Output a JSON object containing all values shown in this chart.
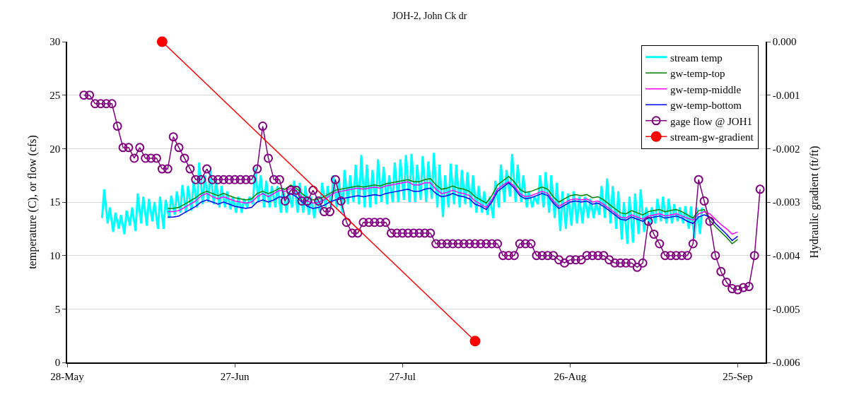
{
  "chart_data": {
    "type": "line",
    "title": "JOH-2, John Ck dr",
    "ylabel": "temperature (C), or flow (cfs)",
    "y2label": "Hydraulic gradient (ft/ft)",
    "xlim": [
      "--05-28",
      "--09-30"
    ],
    "xticks": [
      {
        "value": "--05-28",
        "label": "28-May"
      },
      {
        "value": "--06-27",
        "label": "27-Jun"
      },
      {
        "value": "--07-27",
        "label": "27-Jul"
      },
      {
        "value": "--08-26",
        "label": "26-Aug"
      },
      {
        "value": "--09-25",
        "label": "25-Sep"
      }
    ],
    "ylim": [
      0,
      30
    ],
    "yticks": [
      0,
      5,
      10,
      15,
      20,
      25,
      30
    ],
    "y2lim": [
      -0.006,
      0
    ],
    "y2ticks": [
      {
        "value": -0.006,
        "label": "-0.006"
      },
      {
        "value": -0.005,
        "label": "-0.005"
      },
      {
        "value": -0.004,
        "label": "-0.004"
      },
      {
        "value": -0.003,
        "label": "-0.003"
      },
      {
        "value": -0.002,
        "label": "-0.002"
      },
      {
        "value": -0.001,
        "label": "-0.001"
      },
      {
        "value": 0,
        "label": "0.000"
      }
    ],
    "grid": "y",
    "legend": "top right",
    "x": [
      "--06-15",
      "--06-16",
      "--06-17",
      "--06-18",
      "--06-19",
      "--06-20",
      "--06-21",
      "--06-22",
      "--06-23",
      "--06-24",
      "--06-25",
      "--06-26",
      "--06-27",
      "--06-28",
      "--06-29",
      "--06-30",
      "--07-01",
      "--07-02",
      "--07-03",
      "--07-04",
      "--07-05",
      "--07-06",
      "--07-07",
      "--07-08",
      "--07-09",
      "--07-10",
      "--07-11",
      "--07-12",
      "--07-13",
      "--07-14",
      "--07-15",
      "--07-16",
      "--07-17",
      "--07-18",
      "--07-19",
      "--07-20",
      "--07-21",
      "--07-22",
      "--07-23",
      "--07-24",
      "--07-25",
      "--07-26",
      "--07-27",
      "--07-28",
      "--07-29",
      "--07-30",
      "--07-31",
      "--08-01",
      "--08-02",
      "--08-03",
      "--08-04",
      "--08-05",
      "--08-06",
      "--08-07",
      "--08-08",
      "--08-09",
      "--08-10",
      "--08-11",
      "--08-12",
      "--08-13",
      "--08-14",
      "--08-15",
      "--08-16",
      "--08-17",
      "--08-18",
      "--08-19",
      "--08-20",
      "--08-21",
      "--08-22",
      "--08-23",
      "--08-24",
      "--08-25",
      "--08-26",
      "--08-27",
      "--08-28",
      "--08-29",
      "--08-30",
      "--08-31",
      "--09-01",
      "--09-02",
      "--09-03",
      "--09-04",
      "--09-05",
      "--09-06",
      "--09-07",
      "--09-08",
      "--09-09",
      "--09-10",
      "--09-11",
      "--09-12",
      "--09-13",
      "--09-14",
      "--09-15",
      "--09-16",
      "--09-17",
      "--09-18",
      "--09-19",
      "--09-20",
      "--09-21",
      "--09-22",
      "--09-23",
      "--09-24",
      "--09-25"
    ],
    "series": [
      {
        "name": "stream temp",
        "color": "#00ffff",
        "marker": "none",
        "x": [
          "--06-03T06:00",
          "--06-03T15:00",
          "--06-04T06:00",
          "--06-04T15:00",
          "--06-05T06:00",
          "--06-05T15:00",
          "--06-06T06:00",
          "--06-06T15:00",
          "--06-07T06:00",
          "--06-07T15:00",
          "--06-08T06:00",
          "--06-08T15:00",
          "--06-09T06:00",
          "--06-09T15:00",
          "--06-10T06:00",
          "--06-10T15:00",
          "--06-11T06:00",
          "--06-11T15:00",
          "--06-12T06:00",
          "--06-12T15:00",
          "--06-13T06:00",
          "--06-13T15:00",
          "--06-14T06:00",
          "--06-14T15:00",
          "--06-15T06:00",
          "--06-15T15:00",
          "--06-16T06:00",
          "--06-16T15:00",
          "--06-17T06:00",
          "--06-17T15:00",
          "--06-18T06:00",
          "--06-18T15:00",
          "--06-19T06:00",
          "--06-19T15:00",
          "--06-20T06:00",
          "--06-20T15:00",
          "--06-21T06:00",
          "--06-21T15:00",
          "--06-22T06:00",
          "--06-22T15:00",
          "--06-23T06:00",
          "--06-23T15:00",
          "--06-24T06:00",
          "--06-24T15:00",
          "--06-25T06:00",
          "--06-25T15:00",
          "--06-26T06:00",
          "--06-26T15:00",
          "--06-27T06:00",
          "--06-27T15:00",
          "--06-28T06:00",
          "--06-28T15:00",
          "--06-29T06:00",
          "--06-29T15:00",
          "--06-30T06:00",
          "--06-30T15:00",
          "--07-01T06:00",
          "--07-01T15:00",
          "--07-02T06:00",
          "--07-02T15:00",
          "--07-03T06:00",
          "--07-03T15:00",
          "--07-04T06:00",
          "--07-04T15:00",
          "--07-05T06:00",
          "--07-05T15:00",
          "--07-06T06:00",
          "--07-06T15:00",
          "--07-07T06:00",
          "--07-07T15:00",
          "--07-08T06:00",
          "--07-08T15:00",
          "--07-09T06:00",
          "--07-09T15:00",
          "--07-10T06:00",
          "--07-10T15:00",
          "--07-11T06:00",
          "--07-11T15:00",
          "--07-12T06:00",
          "--07-12T15:00",
          "--07-13T06:00",
          "--07-13T15:00",
          "--07-14T06:00",
          "--07-14T15:00",
          "--07-15T06:00",
          "--07-15T15:00",
          "--07-16T06:00",
          "--07-16T15:00",
          "--07-17T06:00",
          "--07-17T15:00",
          "--07-18T06:00",
          "--07-18T15:00",
          "--07-19T06:00",
          "--07-19T15:00",
          "--07-20T06:00",
          "--07-20T15:00",
          "--07-21T06:00",
          "--07-21T15:00",
          "--07-22T06:00",
          "--07-22T15:00",
          "--07-23T06:00",
          "--07-23T15:00",
          "--07-24T06:00",
          "--07-24T15:00",
          "--07-25T06:00",
          "--07-25T15:00",
          "--07-26T06:00",
          "--07-26T15:00",
          "--07-27T06:00",
          "--07-27T15:00",
          "--07-28T06:00",
          "--07-28T15:00",
          "--07-29T06:00",
          "--07-29T15:00",
          "--07-30T06:00",
          "--07-30T15:00",
          "--07-31T06:00",
          "--07-31T15:00",
          "--08-01T06:00",
          "--08-01T15:00",
          "--08-02T06:00",
          "--08-02T15:00",
          "--08-03T06:00",
          "--08-03T15:00",
          "--08-04T06:00",
          "--08-04T15:00",
          "--08-05T06:00",
          "--08-05T15:00",
          "--08-06T06:00",
          "--08-06T15:00",
          "--08-07T06:00",
          "--08-07T15:00",
          "--08-08T06:00",
          "--08-08T15:00",
          "--08-09T06:00",
          "--08-09T15:00",
          "--08-10T06:00",
          "--08-10T15:00",
          "--08-11T06:00",
          "--08-11T15:00",
          "--08-12T06:00",
          "--08-12T15:00",
          "--08-13T06:00",
          "--08-13T15:00",
          "--08-14T06:00",
          "--08-14T15:00",
          "--08-15T06:00",
          "--08-15T15:00",
          "--08-16T06:00",
          "--08-16T15:00",
          "--08-17T06:00",
          "--08-17T15:00",
          "--08-18T06:00",
          "--08-18T15:00",
          "--08-19T06:00",
          "--08-19T15:00",
          "--08-20T06:00",
          "--08-20T15:00",
          "--08-21T06:00",
          "--08-21T15:00",
          "--08-22T06:00",
          "--08-22T15:00",
          "--08-23T06:00",
          "--08-23T15:00",
          "--08-24T06:00",
          "--08-24T15:00",
          "--08-25T06:00",
          "--08-25T15:00",
          "--08-26T06:00",
          "--08-26T15:00",
          "--08-27T06:00",
          "--08-27T15:00",
          "--08-28T06:00",
          "--08-28T15:00",
          "--08-29T06:00",
          "--08-29T15:00",
          "--08-30T06:00",
          "--08-30T15:00",
          "--08-31T06:00",
          "--08-31T15:00",
          "--09-01T06:00",
          "--09-01T15:00",
          "--09-02T06:00",
          "--09-02T15:00",
          "--09-03T06:00",
          "--09-03T15:00",
          "--09-04T06:00",
          "--09-04T15:00",
          "--09-05T06:00",
          "--09-05T15:00",
          "--09-06T06:00",
          "--09-06T15:00",
          "--09-07T06:00",
          "--09-07T15:00",
          "--09-08T06:00",
          "--09-08T15:00",
          "--09-09T06:00",
          "--09-09T15:00",
          "--09-10T06:00",
          "--09-10T15:00",
          "--09-11T06:00",
          "--09-11T15:00",
          "--09-12T06:00",
          "--09-12T15:00",
          "--09-13T06:00",
          "--09-13T15:00",
          "--09-14T06:00",
          "--09-14T15:00",
          "--09-15T06:00",
          "--09-15T15:00",
          "--09-16T06:00",
          "--09-16T15:00",
          "--09-17T06:00",
          "--09-17T15:00",
          "--09-18T06:00",
          "--09-18T15:00"
        ],
        "values": [
          13.5,
          16.2,
          13.0,
          14.5,
          12.2,
          14.0,
          12.5,
          13.8,
          12.0,
          14.2,
          12.8,
          14.5,
          12.3,
          15.8,
          13.0,
          15.5,
          12.8,
          15.3,
          13.2,
          15.0,
          12.5,
          15.5,
          12.5,
          15.2,
          13.5,
          15.6,
          13.8,
          16.0,
          14.0,
          16.6,
          14.0,
          16.5,
          14.2,
          17.0,
          14.5,
          18.7,
          14.8,
          17.5,
          15.0,
          18.0,
          14.8,
          17.0,
          14.5,
          16.5,
          14.5,
          16.0,
          14.3,
          15.5,
          14.0,
          15.5,
          14.0,
          15.3,
          14.5,
          15.5,
          14.8,
          18.2,
          15.0,
          17.5,
          14.5,
          17.0,
          14.5,
          16.5,
          14.5,
          16.5,
          14.0,
          16.3,
          14.0,
          16.0,
          14.5,
          17.0,
          14.0,
          16.8,
          14.0,
          16.5,
          13.8,
          15.5,
          13.5,
          15.5,
          14.0,
          16.8,
          14.5,
          16.5,
          14.5,
          17.5,
          14.5,
          17.0,
          14.0,
          18.0,
          14.8,
          17.5,
          15.0,
          18.5,
          14.8,
          19.4,
          14.5,
          18.5,
          14.5,
          18.0,
          14.8,
          19.0,
          15.0,
          18.3,
          14.8,
          17.5,
          15.0,
          18.7,
          15.0,
          19.0,
          15.2,
          19.4,
          15.0,
          19.5,
          15.0,
          18.5,
          15.2,
          19.3,
          15.0,
          18.8,
          15.3,
          19.6,
          14.5,
          18.5,
          13.6,
          17.5,
          14.5,
          18.6,
          14.8,
          18.5,
          14.5,
          18.0,
          14.8,
          17.8,
          14.5,
          17.5,
          14.0,
          16.5,
          14.0,
          16.0,
          13.8,
          15.5,
          13.5,
          17.0,
          14.5,
          18.5,
          15.0,
          18.0,
          15.5,
          19.5,
          15.0,
          18.5,
          15.0,
          17.5,
          14.5,
          16.0,
          14.5,
          15.5,
          14.8,
          17.5,
          14.5,
          17.8,
          14.0,
          17.5,
          13.5,
          16.8,
          12.3,
          16.0,
          12.5,
          15.8,
          12.8,
          16.0,
          13.0,
          15.5,
          13.0,
          15.5,
          13.5,
          15.3,
          13.5,
          15.0,
          13.8,
          16.5,
          13.5,
          17.2,
          13.0,
          16.5,
          12.5,
          16.0,
          11.5,
          15.0,
          11.1,
          15.5,
          11.2,
          15.8,
          12.0,
          16.2,
          12.2,
          14.5,
          12.8,
          14.5,
          13.0,
          15.3,
          13.2,
          15.5,
          13.0,
          15.3,
          13.0,
          14.8,
          13.2,
          14.5,
          13.0,
          14.6,
          12.5,
          14.6,
          11.6,
          14.5,
          12.0,
          14.5
        ]
      },
      {
        "name": "gw-temp-top",
        "color": "#008000",
        "marker": "none",
        "values": [
          14.4,
          14.4,
          14.5,
          14.8,
          15.1,
          15.4,
          15.8,
          16.0,
          15.8,
          15.6,
          15.8,
          15.6,
          15.4,
          15.3,
          15.2,
          15.3,
          15.8,
          16.0,
          15.8,
          16.0,
          16.3,
          16.2,
          16.6,
          16.3,
          15.8,
          15.4,
          15.2,
          15.3,
          15.5,
          15.8,
          16.1,
          16.2,
          16.3,
          16.4,
          16.5,
          16.4,
          16.5,
          16.6,
          16.5,
          16.7,
          16.8,
          16.9,
          17.0,
          17.1,
          16.9,
          16.9,
          17.1,
          17.2,
          16.6,
          16.2,
          16.3,
          16.5,
          16.3,
          16.2,
          16.0,
          15.5,
          15.2,
          14.9,
          15.6,
          16.6,
          17.0,
          17.4,
          16.9,
          16.2,
          15.9,
          16.0,
          16.2,
          16.4,
          16.2,
          15.5,
          15.0,
          15.3,
          15.6,
          15.7,
          15.6,
          15.7,
          15.4,
          15.5,
          15.2,
          14.8,
          14.4,
          14.0,
          13.9,
          14.2,
          14.0,
          13.8,
          14.1,
          14.2,
          14.3,
          14.1,
          14.2,
          14.3,
          14.1,
          13.8,
          13.5,
          14.2,
          14.3,
          13.3,
          12.7,
          12.2,
          11.7,
          11.1,
          11.5
        ]
      },
      {
        "name": "gw-temp-middle",
        "color": "#ff00ff",
        "marker": "none",
        "values": [
          14.1,
          14.1,
          14.2,
          14.5,
          14.8,
          15.1,
          15.6,
          15.8,
          15.5,
          15.3,
          15.5,
          15.3,
          15.1,
          15.0,
          14.9,
          15.0,
          15.5,
          15.8,
          15.5,
          15.8,
          16.1,
          16.0,
          16.3,
          16.0,
          15.5,
          15.1,
          14.9,
          15.0,
          15.2,
          15.6,
          15.9,
          16.0,
          16.1,
          16.2,
          16.3,
          16.2,
          16.3,
          16.4,
          16.3,
          16.5,
          16.6,
          16.7,
          16.8,
          16.9,
          16.6,
          16.6,
          16.8,
          16.8,
          16.2,
          15.8,
          15.9,
          16.1,
          15.9,
          15.8,
          15.6,
          15.1,
          14.8,
          14.5,
          15.2,
          16.2,
          16.6,
          16.9,
          16.5,
          15.8,
          15.5,
          15.6,
          15.8,
          16.0,
          15.8,
          15.1,
          14.6,
          14.9,
          15.2,
          15.3,
          15.2,
          15.3,
          15.0,
          15.1,
          14.8,
          14.4,
          14.0,
          13.6,
          13.5,
          13.8,
          13.6,
          13.4,
          13.7,
          13.8,
          13.9,
          13.7,
          13.8,
          13.9,
          13.7,
          13.5,
          13.3,
          13.9,
          14.1,
          13.9,
          13.4,
          12.9,
          12.5,
          12.0,
          12.2
        ]
      },
      {
        "name": "gw-temp-bottom",
        "color": "#0000ff",
        "marker": "none",
        "values": [
          13.6,
          13.6,
          13.7,
          14.0,
          14.3,
          14.6,
          15.0,
          15.2,
          15.0,
          14.8,
          15.0,
          14.8,
          14.6,
          14.5,
          14.4,
          14.5,
          15.0,
          15.2,
          15.0,
          15.2,
          15.5,
          15.4,
          15.8,
          15.5,
          15.0,
          14.6,
          14.4,
          14.5,
          14.7,
          15.0,
          15.2,
          15.3,
          15.4,
          15.5,
          15.6,
          15.5,
          15.6,
          15.7,
          15.6,
          15.8,
          15.9,
          16.0,
          16.1,
          16.2,
          16.0,
          16.0,
          16.2,
          16.3,
          15.8,
          15.5,
          15.6,
          15.8,
          15.6,
          15.5,
          15.3,
          14.8,
          14.6,
          14.3,
          15.0,
          16.0,
          16.4,
          16.8,
          16.3,
          15.6,
          15.3,
          15.4,
          15.6,
          15.8,
          15.6,
          14.9,
          14.4,
          14.7,
          15.0,
          15.1,
          15.0,
          15.1,
          14.8,
          14.9,
          14.6,
          14.2,
          13.8,
          13.4,
          13.3,
          13.6,
          13.4,
          13.2,
          13.5,
          13.6,
          13.7,
          13.5,
          13.6,
          13.7,
          13.5,
          13.2,
          13.0,
          13.6,
          13.8,
          13.6,
          13.0,
          12.5,
          12.0,
          11.4,
          11.8
        ]
      },
      {
        "name": "gage flow @ JOH1",
        "color": "#800080",
        "marker": "circle-open",
        "x": [
          "--05-31",
          "--06-01",
          "--06-02",
          "--06-03",
          "--06-04",
          "--06-05",
          "--06-06",
          "--06-07",
          "--06-08",
          "--06-09",
          "--06-10",
          "--06-11",
          "--06-12",
          "--06-13",
          "--06-14",
          "--06-15",
          "--06-16",
          "--06-17",
          "--06-18",
          "--06-19",
          "--06-20",
          "--06-21",
          "--06-22",
          "--06-23",
          "--06-24",
          "--06-25",
          "--06-26",
          "--06-27",
          "--06-28",
          "--06-29",
          "--06-30",
          "--07-01",
          "--07-02",
          "--07-03",
          "--07-04",
          "--07-05",
          "--07-06",
          "--07-07",
          "--07-08",
          "--07-09",
          "--07-10",
          "--07-11",
          "--07-12",
          "--07-13",
          "--07-14",
          "--07-15",
          "--07-16",
          "--07-17",
          "--07-18",
          "--07-19",
          "--07-20",
          "--07-21",
          "--07-22",
          "--07-23",
          "--07-24",
          "--07-25",
          "--07-26",
          "--07-27",
          "--07-28",
          "--07-29",
          "--07-30",
          "--07-31",
          "--08-01",
          "--08-02",
          "--08-03",
          "--08-04",
          "--08-05",
          "--08-06",
          "--08-07",
          "--08-08",
          "--08-09",
          "--08-10",
          "--08-11",
          "--08-12",
          "--08-13",
          "--08-14",
          "--08-15",
          "--08-16",
          "--08-17",
          "--08-18",
          "--08-19",
          "--08-20",
          "--08-21",
          "--08-22",
          "--08-23",
          "--08-24",
          "--08-25",
          "--08-26",
          "--08-27",
          "--08-28",
          "--08-29",
          "--08-30",
          "--08-31",
          "--09-01",
          "--09-02",
          "--09-03",
          "--09-04",
          "--09-05",
          "--09-06",
          "--09-07",
          "--09-08",
          "--09-09",
          "--09-10",
          "--09-11",
          "--09-12",
          "--09-13",
          "--09-14",
          "--09-15",
          "--09-16",
          "--09-17",
          "--09-18",
          "--09-19",
          "--09-20",
          "--09-21",
          "--09-22",
          "--09-23",
          "--09-24",
          "--09-25",
          "--09-26",
          "--09-27",
          "--09-28",
          "--09-29"
        ],
        "values": [
          25.0,
          25.0,
          24.2,
          24.2,
          24.2,
          24.2,
          22.1,
          20.1,
          20.1,
          19.1,
          20.1,
          19.1,
          19.1,
          19.1,
          18.1,
          18.1,
          21.1,
          20.1,
          19.1,
          18.1,
          17.1,
          17.1,
          18.1,
          17.1,
          17.1,
          17.1,
          17.1,
          17.1,
          17.1,
          17.1,
          17.1,
          18.1,
          22.1,
          19.1,
          17.1,
          17.1,
          15.1,
          16.1,
          16.1,
          15.1,
          15.1,
          16.1,
          15.1,
          14.1,
          14.1,
          17.1,
          15.1,
          13.1,
          12.1,
          12.1,
          13.1,
          13.1,
          13.1,
          13.1,
          13.1,
          12.1,
          12.1,
          12.1,
          12.1,
          12.1,
          12.1,
          12.1,
          12.1,
          11.1,
          11.1,
          11.1,
          11.1,
          11.1,
          11.1,
          11.1,
          11.1,
          11.1,
          11.1,
          11.1,
          11.1,
          10.0,
          10.0,
          10.0,
          11.1,
          11.1,
          11.1,
          10.0,
          10.0,
          10.0,
          10.0,
          9.6,
          9.3,
          9.6,
          9.6,
          9.6,
          10.0,
          10.0,
          10.0,
          10.0,
          9.6,
          9.3,
          9.3,
          9.3,
          9.3,
          8.9,
          9.3,
          13.2,
          12.0,
          11.1,
          10.0,
          10.0,
          10.0,
          10.0,
          10.0,
          11.1,
          17.1,
          15.1,
          13.2,
          10.0,
          8.5,
          7.5,
          6.9,
          6.8,
          7.0,
          7.1,
          10.0,
          16.2
        ]
      },
      {
        "name": "stream-gw-gradient",
        "color": "#ff0000",
        "marker": "circle",
        "axis": "y2",
        "x": [
          "--06-14",
          "--08-09"
        ],
        "values": [
          0.0,
          -0.0056
        ]
      }
    ]
  }
}
